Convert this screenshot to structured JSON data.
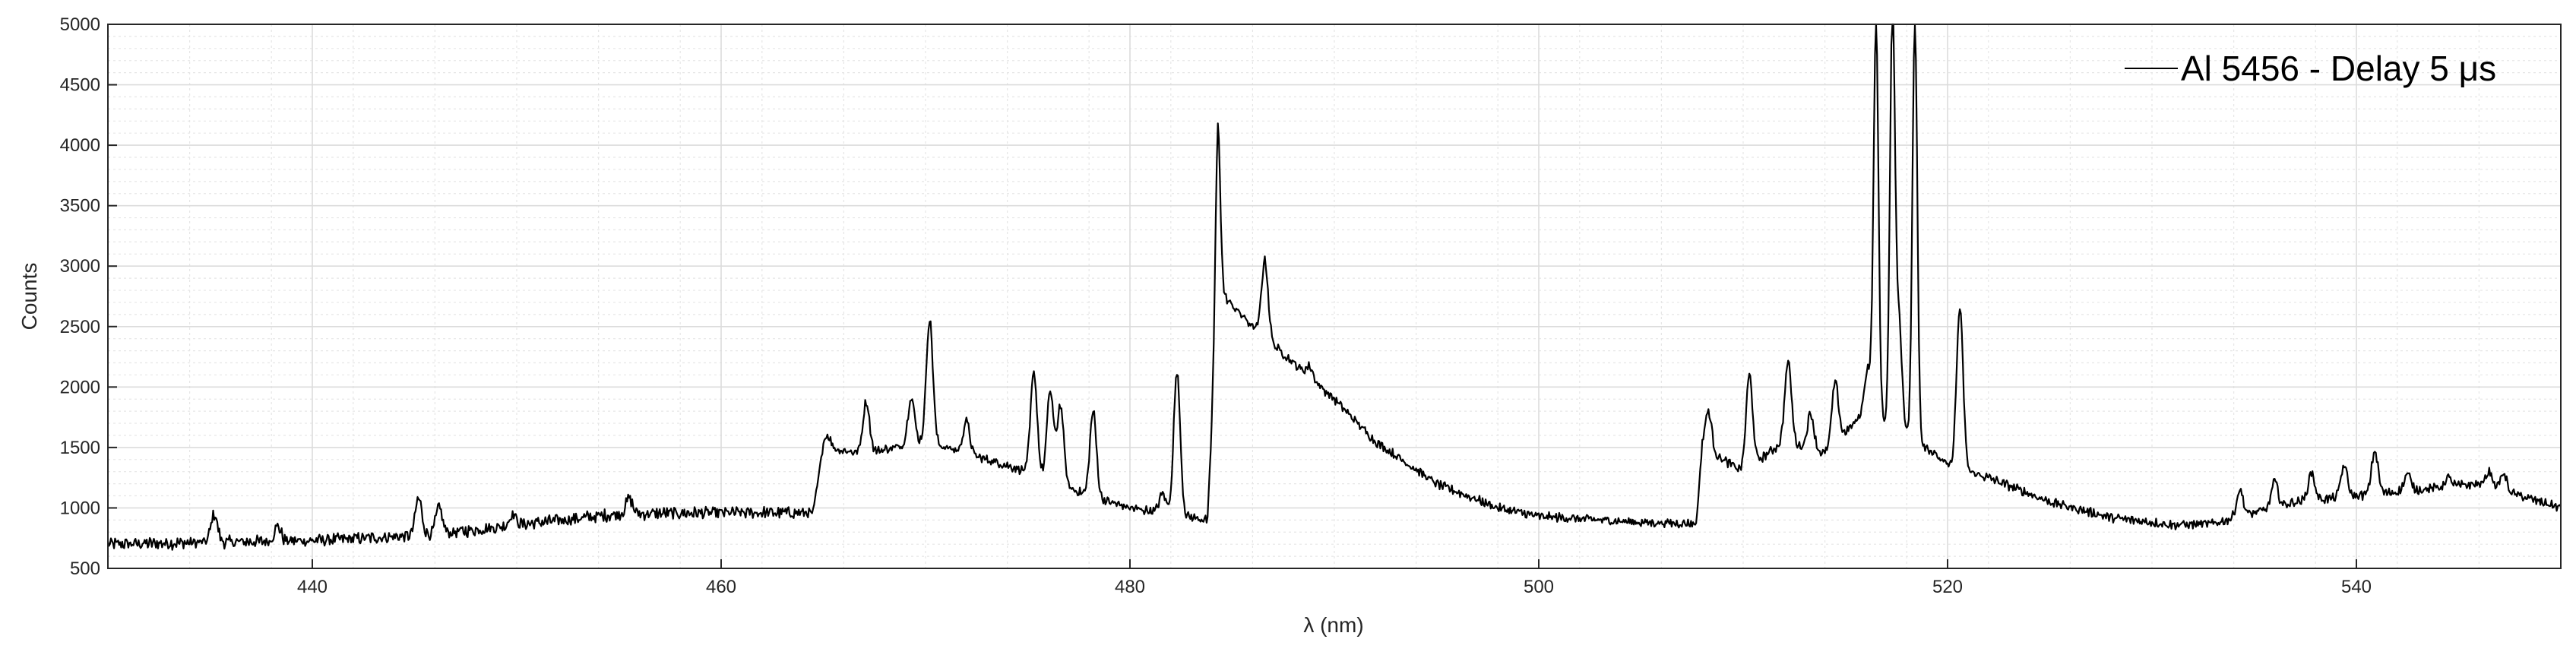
{
  "chart_data": {
    "type": "line",
    "xlabel": "λ (nm)",
    "ylabel": "Counts",
    "xlim": [
      430,
      550
    ],
    "ylim": [
      500,
      5000
    ],
    "x_ticks": [
      440,
      460,
      480,
      500,
      520,
      540
    ],
    "y_ticks": [
      500,
      1000,
      1500,
      2000,
      2500,
      3000,
      3500,
      4000,
      4500,
      5000
    ],
    "grid": true,
    "minor_grid": true,
    "legend_position": "top-right",
    "line_color": "#000000",
    "background_color": "#ffffff",
    "grid_color": "#dcdcdc",
    "series": [
      {
        "name": "Al 5456 - Delay 5 μs",
        "baseline": [
          [
            430,
            700
          ],
          [
            440,
            730
          ],
          [
            445,
            770
          ],
          [
            447,
            800
          ],
          [
            450,
            860
          ],
          [
            455,
            950
          ],
          [
            460,
            960
          ],
          [
            464.5,
            960
          ],
          [
            465,
            1500
          ],
          [
            467,
            1450
          ],
          [
            470,
            1550
          ],
          [
            475,
            1300
          ],
          [
            478,
            1100
          ],
          [
            480,
            1000
          ],
          [
            482,
            950
          ],
          [
            483.8,
            900
          ],
          [
            484.3,
            2800
          ],
          [
            486,
            2500
          ],
          [
            488,
            2200
          ],
          [
            490,
            1900
          ],
          [
            492,
            1550
          ],
          [
            495,
            1200
          ],
          [
            498,
            1000
          ],
          [
            500,
            930
          ],
          [
            505,
            880
          ],
          [
            507.7,
            870
          ],
          [
            508,
            1500
          ],
          [
            510,
            1300
          ],
          [
            512,
            1550
          ],
          [
            514,
            1450
          ],
          [
            516,
            1800
          ],
          [
            519,
            1500
          ],
          [
            520,
            1350
          ],
          [
            522,
            1250
          ],
          [
            525,
            1050
          ],
          [
            528,
            920
          ],
          [
            531,
            860
          ],
          [
            533,
            870
          ],
          [
            535,
            960
          ],
          [
            537,
            1050
          ],
          [
            540,
            1100
          ],
          [
            543,
            1150
          ],
          [
            546,
            1200
          ],
          [
            548,
            1100
          ],
          [
            550,
            1000
          ]
        ],
        "peaks": [
          [
            435.2,
            950
          ],
          [
            438.3,
            850
          ],
          [
            445.2,
            1080
          ],
          [
            446.2,
            1000
          ],
          [
            449.8,
            950
          ],
          [
            455.5,
            1080
          ],
          [
            465.2,
            1600
          ],
          [
            467.1,
            1880
          ],
          [
            469.3,
            1920
          ],
          [
            470.2,
            2560
          ],
          [
            472,
            1720
          ],
          [
            475.3,
            2120
          ],
          [
            476.1,
            1970
          ],
          [
            476.6,
            1850
          ],
          [
            478.2,
            1800
          ],
          [
            481.6,
            1120
          ],
          [
            482.3,
            2120
          ],
          [
            484.3,
            4170
          ],
          [
            486.6,
            3050
          ],
          [
            488.8,
            2170
          ],
          [
            508.3,
            1800
          ],
          [
            510.3,
            2100
          ],
          [
            512.2,
            2210
          ],
          [
            513.3,
            1780
          ],
          [
            514.5,
            2040
          ],
          [
            516.1,
            2150
          ],
          [
            516.5,
            5000
          ],
          [
            517.3,
            5000
          ],
          [
            517.6,
            2580
          ],
          [
            518.4,
            5000
          ],
          [
            520.6,
            2650
          ],
          [
            534.3,
            1150
          ],
          [
            536,
            1220
          ],
          [
            537.8,
            1290
          ],
          [
            539.4,
            1350
          ],
          [
            540.9,
            1470
          ],
          [
            542.5,
            1280
          ],
          [
            544.5,
            1250
          ],
          [
            546.5,
            1300
          ],
          [
            547.2,
            1280
          ]
        ]
      }
    ]
  }
}
